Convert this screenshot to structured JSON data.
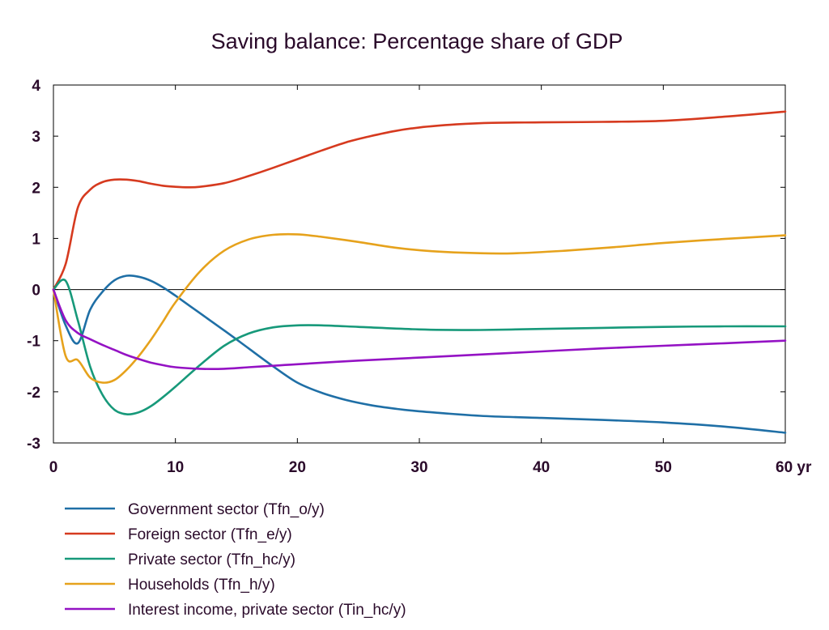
{
  "chart_data": {
    "type": "line",
    "title": "Saving balance: Percentage share of GDP",
    "xlabel": "",
    "ylabel": "",
    "x_unit_label": "yr",
    "xlim": [
      0,
      60
    ],
    "ylim": [
      -3,
      4
    ],
    "x_ticks": [
      0,
      10,
      20,
      30,
      40,
      50,
      60
    ],
    "x_tick_labels": [
      "0",
      "10",
      "20",
      "30",
      "40",
      "50",
      "60 yr"
    ],
    "y_ticks": [
      -3,
      -2,
      -1,
      0,
      1,
      2,
      3,
      4
    ],
    "y_tick_labels": [
      "-3",
      "-2",
      "-1",
      "0",
      "1",
      "2",
      "3",
      "4"
    ],
    "grid": false,
    "zero_line": true,
    "legend_position": "bottom-left",
    "series": [
      {
        "name": "Government sector (Tfn_o/y)",
        "color": "#1f6fa6",
        "x": [
          0,
          1,
          2,
          3,
          4,
          5,
          6,
          7,
          8,
          9,
          10,
          12,
          14,
          16,
          18,
          20,
          22,
          24,
          26,
          28,
          30,
          35,
          40,
          45,
          50,
          55,
          60
        ],
        "y": [
          0,
          -0.7,
          -1.05,
          -0.4,
          -0.05,
          0.18,
          0.27,
          0.25,
          0.17,
          0.04,
          -0.12,
          -0.46,
          -0.8,
          -1.15,
          -1.5,
          -1.82,
          -2.02,
          -2.16,
          -2.26,
          -2.33,
          -2.38,
          -2.47,
          -2.51,
          -2.55,
          -2.6,
          -2.68,
          -2.8
        ]
      },
      {
        "name": "Foreign sector (Tfn_e/y)",
        "color": "#d63a1f",
        "x": [
          0,
          1,
          2,
          3,
          4,
          5,
          6,
          7,
          8,
          9,
          10,
          11,
          12,
          14,
          16,
          18,
          20,
          22,
          24,
          26,
          28,
          30,
          33,
          36,
          40,
          45,
          50,
          55,
          60
        ],
        "y": [
          0,
          0.5,
          1.6,
          1.95,
          2.1,
          2.15,
          2.15,
          2.12,
          2.07,
          2.03,
          2.01,
          2.0,
          2.01,
          2.08,
          2.22,
          2.38,
          2.55,
          2.72,
          2.88,
          3.0,
          3.1,
          3.17,
          3.23,
          3.26,
          3.27,
          3.28,
          3.3,
          3.38,
          3.48
        ]
      },
      {
        "name": "Private sector (Tfn_hc/y)",
        "color": "#17997a",
        "x": [
          0,
          1,
          2,
          3,
          4,
          5,
          6,
          7,
          8,
          9,
          10,
          12,
          14,
          16,
          18,
          20,
          22,
          25,
          30,
          35,
          40,
          45,
          50,
          55,
          60
        ],
        "y": [
          0,
          0.17,
          -0.6,
          -1.5,
          -2.05,
          -2.35,
          -2.44,
          -2.4,
          -2.28,
          -2.1,
          -1.9,
          -1.48,
          -1.1,
          -0.86,
          -0.74,
          -0.7,
          -0.7,
          -0.73,
          -0.78,
          -0.79,
          -0.77,
          -0.75,
          -0.73,
          -0.72,
          -0.72
        ]
      },
      {
        "name": "Households (Tfn_h/y)",
        "color": "#e6a21c",
        "x": [
          0,
          1,
          2,
          3,
          4,
          5,
          6,
          7,
          8,
          9,
          10,
          12,
          14,
          16,
          18,
          20,
          22,
          25,
          28,
          31,
          35,
          38,
          42,
          46,
          50,
          55,
          60
        ],
        "y": [
          0,
          -1.3,
          -1.38,
          -1.72,
          -1.82,
          -1.77,
          -1.57,
          -1.3,
          -0.98,
          -0.62,
          -0.25,
          0.35,
          0.76,
          0.98,
          1.07,
          1.08,
          1.03,
          0.93,
          0.82,
          0.75,
          0.71,
          0.71,
          0.76,
          0.83,
          0.91,
          0.99,
          1.06
        ]
      },
      {
        "name": "Interest income, private sector (Tin_hc/y)",
        "color": "#9412c4",
        "x": [
          0,
          1,
          2,
          3,
          4,
          5,
          6,
          7,
          8,
          9,
          10,
          12,
          14,
          16,
          18,
          20,
          25,
          30,
          35,
          40,
          45,
          50,
          55,
          60
        ],
        "y": [
          0,
          -0.6,
          -0.85,
          -0.97,
          -1.08,
          -1.18,
          -1.28,
          -1.36,
          -1.43,
          -1.48,
          -1.52,
          -1.55,
          -1.55,
          -1.52,
          -1.49,
          -1.46,
          -1.39,
          -1.33,
          -1.27,
          -1.21,
          -1.15,
          -1.1,
          -1.05,
          -1.0
        ]
      }
    ]
  }
}
